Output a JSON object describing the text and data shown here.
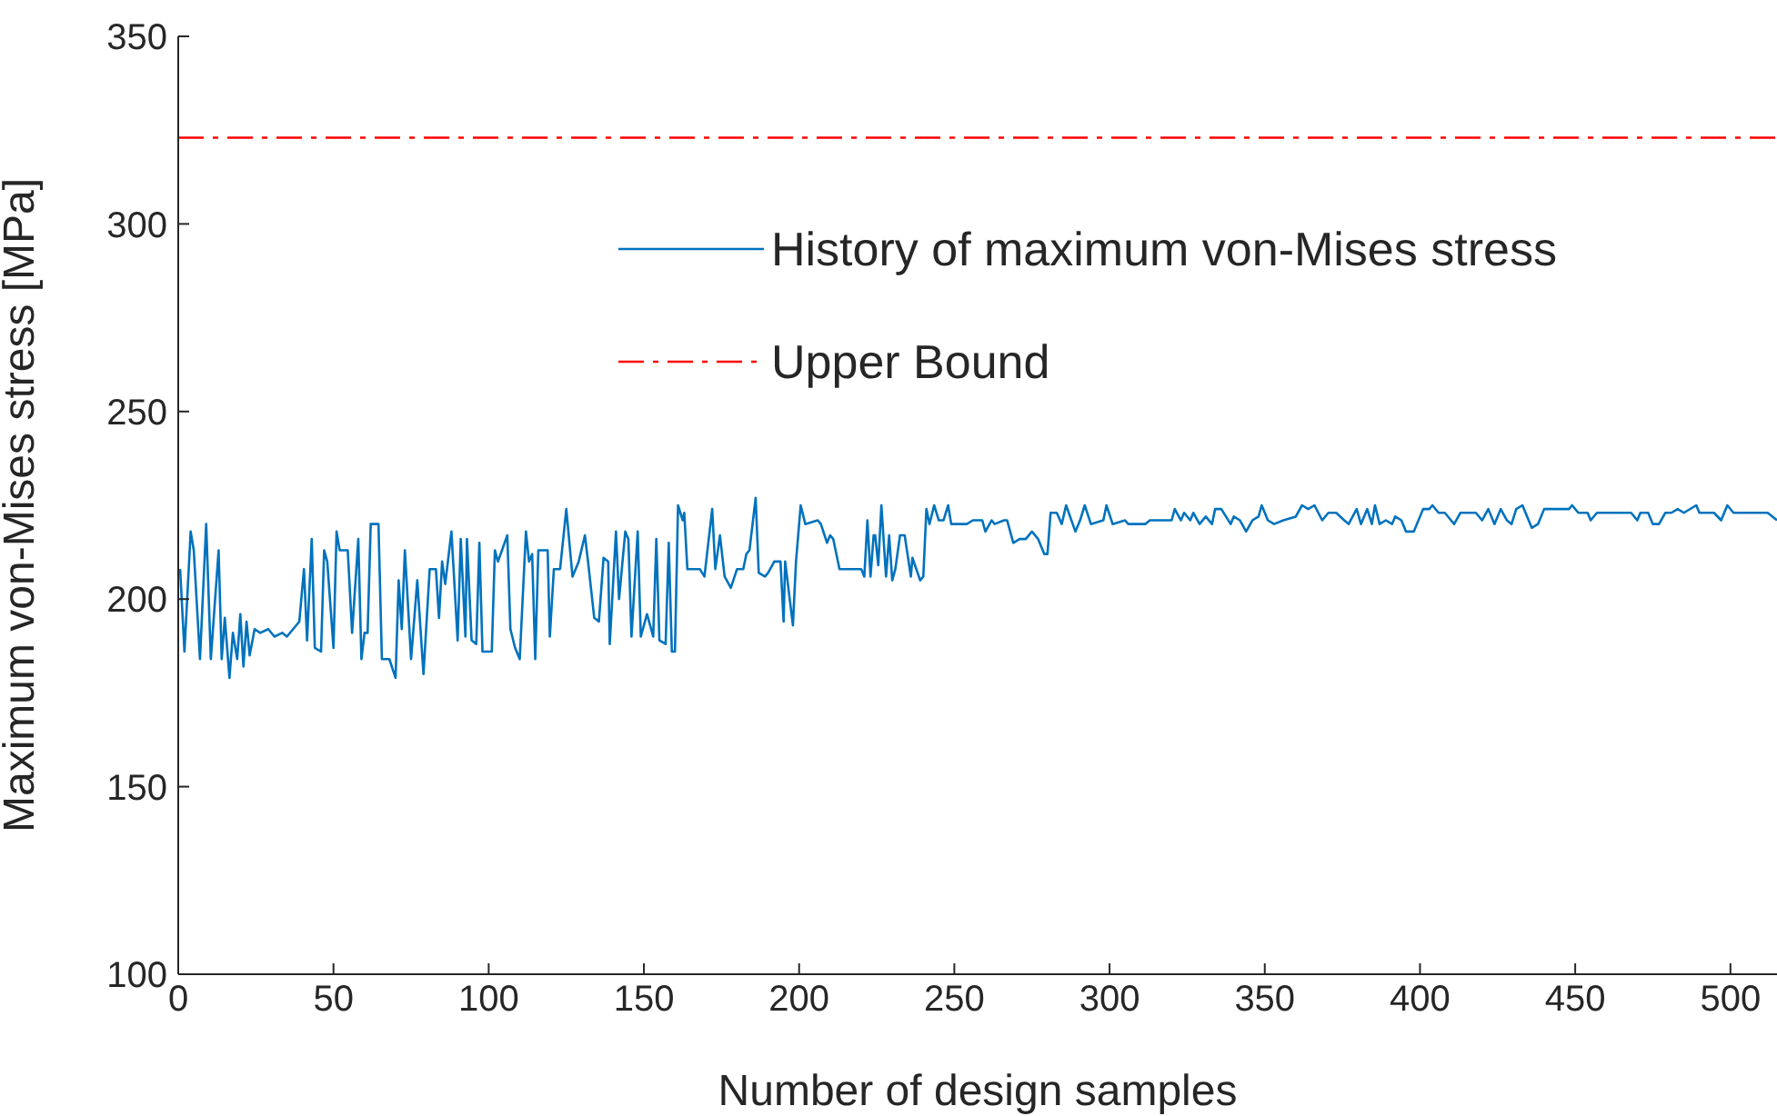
{
  "chart_data": {
    "type": "line",
    "xlabel": "Number of design samples",
    "ylabel": "Maximum von-Mises stress [MPa]",
    "xlim": [
      0,
      515
    ],
    "xticks": [
      0,
      50,
      100,
      150,
      200,
      250,
      300,
      350,
      400,
      450,
      500
    ],
    "ylim": [
      100,
      350
    ],
    "yticks": [
      100,
      150,
      200,
      250,
      300,
      350
    ],
    "grid": false,
    "legend": "top right",
    "marker": "none",
    "line_style": "solid",
    "ref_lines": [
      {
        "axis": "y",
        "value": 323,
        "label": "Upper Bound",
        "color": "#ff0000",
        "line_style": "dashed"
      }
    ],
    "series": [
      {
        "name": "History of maximum von-Mises stress",
        "color": "#0072bd",
        "x": [
          0.6,
          2,
          4,
          5,
          7,
          9,
          10.5,
          13,
          14,
          15,
          16.5,
          17.6,
          19,
          20,
          21,
          22,
          23,
          24.6,
          26.4,
          29,
          31,
          33.5,
          35,
          39,
          40.5,
          41.5,
          43,
          44,
          46,
          47,
          48,
          50,
          51,
          52,
          54.6,
          56,
          58,
          59,
          60,
          61,
          62,
          64.5,
          65.6,
          68,
          70,
          71,
          72,
          73,
          75,
          77,
          79,
          81,
          83,
          84,
          85,
          86,
          88,
          90,
          91,
          92.5,
          93,
          94.5,
          96,
          97,
          98,
          101,
          102,
          103,
          106,
          107,
          108.5,
          110,
          112,
          113,
          114,
          115,
          116,
          119,
          119.7,
          121,
          123,
          125,
          127,
          128,
          129,
          131,
          132,
          134,
          135.5,
          137,
          138.5,
          139,
          141,
          142,
          144,
          145,
          146,
          148,
          149,
          151,
          153,
          154,
          155,
          157,
          158,
          159,
          160,
          161,
          162.5,
          163,
          164,
          168,
          169.5,
          172,
          173,
          174.5,
          176,
          178,
          180,
          182,
          183,
          184,
          186,
          187,
          189,
          190,
          192,
          194,
          195,
          195.5,
          198,
          199,
          200.5,
          202,
          206,
          207,
          209,
          210,
          211,
          213,
          220,
          221,
          222,
          223,
          224,
          224.5,
          225.5,
          226.5,
          228,
          229,
          230,
          231,
          232.5,
          234,
          236,
          236.5,
          239,
          240,
          241,
          242,
          243.5,
          245,
          246.5,
          248,
          249,
          252,
          254,
          256,
          259,
          260,
          262,
          263,
          266,
          267,
          269,
          271,
          273,
          275,
          277,
          279,
          280,
          281,
          283,
          284.6,
          286,
          289,
          290.5,
          292,
          294,
          298,
          299,
          301,
          305,
          306,
          311.5,
          313,
          320,
          321,
          323,
          324,
          326,
          327,
          329,
          331,
          333,
          334,
          336,
          339,
          340,
          342,
          344,
          346,
          348,
          349,
          351,
          353,
          356,
          360,
          362,
          364,
          366,
          368.5,
          370.5,
          373,
          375.6,
          377,
          379.6,
          381,
          383,
          384.5,
          385.5,
          387,
          389,
          391,
          392,
          394,
          395.5,
          398,
          401,
          403,
          404,
          406,
          408,
          410,
          411,
          413,
          418,
          420,
          422,
          424,
          426,
          428,
          429.5,
          431,
          433,
          436,
          438,
          440,
          448,
          449,
          451,
          454,
          455,
          457,
          468,
          470,
          471,
          473.5,
          475,
          477,
          479,
          481,
          483,
          485,
          489,
          490,
          494.7,
          497,
          499,
          501,
          512,
          515
        ],
        "values": [
          208,
          186,
          218,
          213,
          184,
          220,
          184,
          213,
          184,
          195,
          179,
          191,
          184,
          196,
          182,
          194,
          185,
          192,
          191,
          192,
          190,
          191,
          190,
          194,
          208,
          189,
          216,
          187,
          186,
          213,
          210,
          187,
          218,
          213,
          213,
          191,
          216,
          184,
          191,
          191,
          220,
          220,
          184,
          184,
          179,
          205,
          192,
          213,
          184,
          205,
          180,
          208,
          208,
          195,
          210,
          204,
          218,
          189,
          216,
          190,
          216,
          189,
          188,
          215,
          186,
          186,
          213,
          210,
          217,
          192,
          187,
          184,
          218,
          210,
          212,
          184,
          213,
          213,
          190,
          208,
          208,
          224,
          206,
          208,
          210,
          217,
          210,
          195,
          194,
          211,
          210,
          188,
          218,
          200,
          218,
          216,
          190,
          218,
          190,
          196,
          190,
          216,
          189,
          188,
          215,
          186,
          186,
          225,
          221,
          223,
          208,
          208,
          206,
          224,
          208,
          217,
          206,
          203,
          208,
          208,
          212,
          213,
          227,
          207,
          206,
          207,
          210,
          210,
          194,
          210,
          193,
          210,
          225,
          220,
          221,
          220,
          215,
          217,
          216,
          208,
          208,
          206,
          221,
          206,
          217,
          217,
          209,
          225,
          206,
          217,
          205,
          208,
          217,
          217,
          206,
          211,
          205,
          206,
          224,
          220,
          225,
          221,
          221,
          225,
          220,
          220,
          220,
          221,
          221,
          218,
          221,
          220,
          221,
          221,
          215,
          216,
          216,
          218,
          216,
          212,
          212,
          223,
          223,
          220,
          225,
          218,
          221,
          225,
          220,
          221,
          225,
          220,
          221,
          220,
          220,
          221,
          221,
          224,
          221,
          223,
          221,
          223,
          220,
          222,
          220,
          224,
          224,
          220,
          222,
          221,
          218,
          221,
          222,
          225,
          221,
          220,
          221,
          222,
          225,
          224,
          225,
          221,
          223,
          223,
          221,
          220,
          224,
          220,
          224,
          220,
          225,
          220,
          221,
          220,
          222,
          221,
          218,
          218,
          224,
          224,
          225,
          223,
          223,
          221,
          220,
          223,
          223,
          221,
          224,
          220,
          224,
          221,
          220,
          224,
          225,
          219,
          220,
          224,
          224,
          225,
          223,
          223,
          221,
          223,
          223,
          221,
          223,
          223,
          220,
          220,
          223,
          223,
          224,
          223,
          225,
          223,
          223,
          221,
          225,
          223,
          223,
          221
        ]
      }
    ]
  }
}
